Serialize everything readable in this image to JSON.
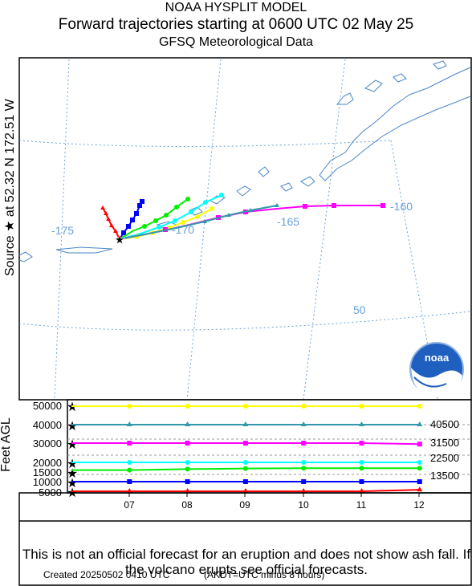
{
  "header": {
    "model": "NOAA HYSPLIT MODEL",
    "title": "Forward trajectories starting at 0600 UTC 02 May 25",
    "data": "GFSQ Meteorological Data"
  },
  "source_label": "Source ★ at   52.32 N  172.51 W",
  "map": {
    "lon_labels": [
      "-175",
      "-170",
      "-165",
      "-160"
    ],
    "lat_labels": [
      "50"
    ],
    "logo": "noaa"
  },
  "height_panel": {
    "ylabel": "Feet AGL",
    "left_ticks": [
      "50000",
      "40000",
      "30000",
      "20000",
      "15000",
      "10000",
      "5000"
    ],
    "right_labels": [
      "40500",
      "31500",
      "22500",
      "13500"
    ],
    "x_ticks": [
      "07",
      "08",
      "09",
      "10",
      "11",
      "12"
    ]
  },
  "footer": {
    "disclaimer": "This is not an official forecast for an eruption and does not show ash fall. If the volcano erupts see official forecasts.",
    "created": "Created 20250502 0410 UTC",
    "akdt_note": "(AKDT=UTC minus 8 hours)"
  },
  "chart_data": {
    "type": "line",
    "x": [
      "07",
      "08",
      "09",
      "10",
      "11",
      "12"
    ],
    "ylabel": "Feet AGL",
    "ylim": [
      5000,
      50000
    ],
    "series": [
      {
        "color": "#ffff00",
        "marker": "circle",
        "values": [
          50000,
          50000,
          50000,
          50000,
          50000,
          50000
        ]
      },
      {
        "color": "#3399aa",
        "marker": "triangle",
        "values": [
          40000,
          40000,
          40000,
          40000,
          40000,
          40000
        ]
      },
      {
        "color": "#ff00ff",
        "marker": "square",
        "values": [
          30000,
          30000,
          30000,
          30000,
          30000,
          29500
        ]
      },
      {
        "color": "#00ffff",
        "marker": "circle",
        "values": [
          20000,
          20000,
          20000,
          20000,
          20000,
          20000
        ]
      },
      {
        "color": "#00ee00",
        "marker": "circle",
        "values": [
          16000,
          16500,
          16800,
          17000,
          17000,
          17000
        ]
      },
      {
        "color": "#0000ff",
        "marker": "square",
        "values": [
          10000,
          10000,
          10000,
          10000,
          10000,
          10000
        ]
      },
      {
        "color": "#ff0000",
        "marker": "triangle",
        "values": [
          5000,
          5000,
          5000,
          5000,
          5000,
          5800
        ]
      }
    ]
  }
}
